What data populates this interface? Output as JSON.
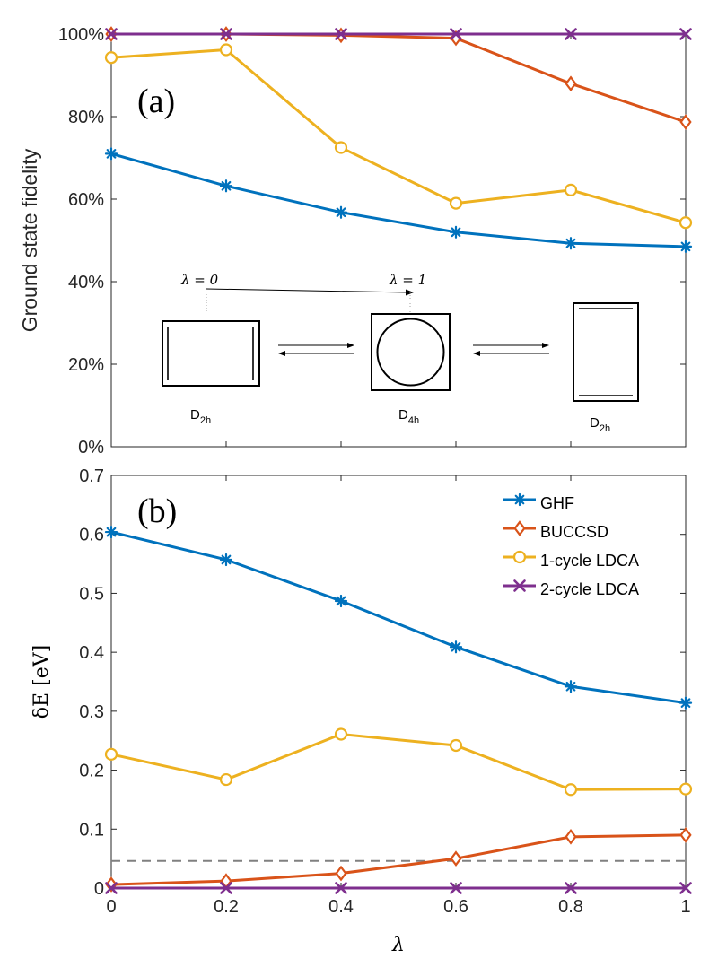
{
  "chart_data": [
    {
      "type": "line",
      "panel_label": "(a)",
      "ylabel": "Ground state fidelity",
      "xlabel": "",
      "xlim": [
        0,
        1
      ],
      "ylim": [
        0,
        100
      ],
      "x": [
        0,
        0.2,
        0.4,
        0.6,
        0.8,
        1
      ],
      "xtick_values": [
        0,
        0.2,
        0.4,
        0.6,
        0.8,
        1
      ],
      "ytick_values": [
        0,
        20,
        40,
        60,
        80,
        100
      ],
      "ytick_labels": [
        "0%",
        "20%",
        "40%",
        "60%",
        "80%",
        "100%"
      ],
      "series": [
        {
          "name": "GHF",
          "color": "#0072BD",
          "marker": "asterisk",
          "values": [
            71,
            63.2,
            56.8,
            52,
            49.3,
            48.5
          ]
        },
        {
          "name": "BUCCSD",
          "color": "#D95319",
          "marker": "diamond",
          "values": [
            100,
            100,
            99.7,
            99,
            88,
            78.7
          ]
        },
        {
          "name": "1-cycle LDCA",
          "color": "#EDB120",
          "marker": "circle",
          "values": [
            94.3,
            96.2,
            72.5,
            59,
            62.2,
            54.3
          ]
        },
        {
          "name": "2-cycle LDCA",
          "color": "#7E2F8E",
          "marker": "x",
          "values": [
            100,
            100,
            100,
            100,
            100,
            100
          ]
        }
      ],
      "inset": {
        "lambda_start_label": "λ = 0",
        "lambda_end_label": "λ = 1",
        "left_group": {
          "main": "D",
          "sub": "2h"
        },
        "middle_group": {
          "main": "D",
          "sub": "4h"
        },
        "right_group": {
          "main": "D",
          "sub": "2h"
        }
      }
    },
    {
      "type": "line",
      "panel_label": "(b)",
      "ylabel": "δE [eV]",
      "xlabel": "λ",
      "xlim": [
        0,
        1
      ],
      "ylim": [
        0,
        0.7
      ],
      "x": [
        0,
        0.2,
        0.4,
        0.6,
        0.8,
        1
      ],
      "xtick_values": [
        0,
        0.2,
        0.4,
        0.6,
        0.8,
        1
      ],
      "xtick_labels": [
        "0",
        "0.2",
        "0.4",
        "0.6",
        "0.8",
        "1"
      ],
      "ytick_values": [
        0,
        0.1,
        0.2,
        0.3,
        0.4,
        0.5,
        0.6,
        0.7
      ],
      "ytick_labels": [
        "0",
        "0.1",
        "0.2",
        "0.3",
        "0.4",
        "0.5",
        "0.6",
        "0.7"
      ],
      "legend_position": "top-right",
      "reference_line": {
        "y": 0.046,
        "style": "dashed",
        "color": "#808080"
      },
      "series": [
        {
          "name": "GHF",
          "color": "#0072BD",
          "marker": "asterisk",
          "values": [
            0.604,
            0.557,
            0.487,
            0.409,
            0.342,
            0.314
          ]
        },
        {
          "name": "BUCCSD",
          "color": "#D95319",
          "marker": "diamond",
          "values": [
            0.006,
            0.012,
            0.025,
            0.05,
            0.087,
            0.09
          ]
        },
        {
          "name": "1-cycle LDCA",
          "color": "#EDB120",
          "marker": "circle",
          "values": [
            0.227,
            0.184,
            0.261,
            0.242,
            0.167,
            0.168
          ]
        },
        {
          "name": "2-cycle LDCA",
          "color": "#7E2F8E",
          "marker": "x",
          "values": [
            0,
            0,
            0,
            0,
            0,
            0
          ]
        }
      ]
    }
  ]
}
